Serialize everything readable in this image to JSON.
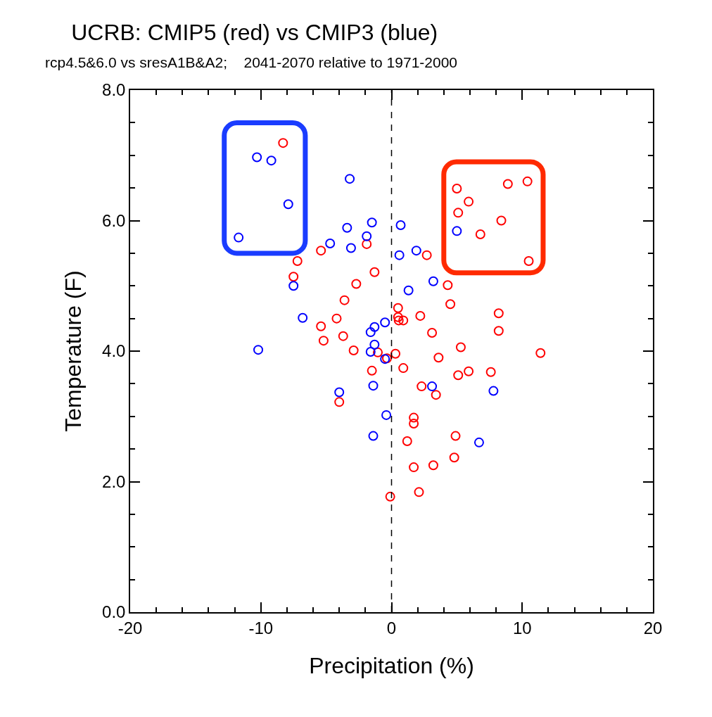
{
  "chart_data": {
    "type": "scatter",
    "title": "UCRB: CMIP5 (red) vs CMIP3 (blue)",
    "subtitle": "rcp4.5&6.0 vs sresA1B&A2;    2041-2070 relative to 1971-2000",
    "xlabel": "Precipitation (%)",
    "ylabel": "Temperature (F)",
    "xlim": [
      -20,
      20
    ],
    "xticks": [
      -20,
      -10,
      0,
      10,
      20
    ],
    "ylim": [
      0,
      8
    ],
    "yticks": [
      {
        "value": 0,
        "label": "0.0"
      },
      {
        "value": 2,
        "label": "2.0"
      },
      {
        "value": 4,
        "label": "4.0"
      },
      {
        "value": 6,
        "label": "6.0"
      },
      {
        "value": 8,
        "label": "8.0"
      }
    ],
    "grid": false,
    "marker": "circle",
    "ref_lines": [
      {
        "axis": "x",
        "value": 0,
        "color": "#000000",
        "line_style": "dashed"
      }
    ],
    "series": [
      {
        "color": "#ff0000",
        "x": [
          -8.3,
          -7.2,
          -7.5,
          -5.4,
          -1.9,
          -1.3,
          -2.7,
          -3.6,
          -4.2,
          -5.4,
          -3.7,
          -5.2,
          -2.9,
          -1.05,
          -0.35,
          0.3,
          -1.5,
          -4.0,
          -0.1,
          0.5,
          0.5,
          0.55,
          0.9,
          4.5,
          2.2,
          8.2,
          8.2,
          3.1,
          5.3,
          3.6,
          11.4,
          0.9,
          5.1,
          5.9,
          7.6,
          2.3,
          3.4,
          1.7,
          1.7,
          1.2,
          4.9,
          4.8,
          1.7,
          3.2,
          2.1,
          2.7,
          4.3,
          5.0,
          5.9,
          5.1,
          8.9,
          10.4,
          8.4,
          6.8,
          10.5
        ],
        "values": [
          7.19,
          5.38,
          5.14,
          5.54,
          5.64,
          5.21,
          5.03,
          4.78,
          4.5,
          4.38,
          4.23,
          4.16,
          4.01,
          3.98,
          3.89,
          3.96,
          3.7,
          3.22,
          1.77,
          4.66,
          4.52,
          4.47,
          4.47,
          4.72,
          4.54,
          4.58,
          4.31,
          4.28,
          4.06,
          3.9,
          3.97,
          3.74,
          3.63,
          3.69,
          3.68,
          3.46,
          3.33,
          2.98,
          2.89,
          2.62,
          2.7,
          2.37,
          2.22,
          2.25,
          1.84,
          5.47,
          5.01,
          6.49,
          6.29,
          6.12,
          6.56,
          6.6,
          6.0,
          5.79,
          5.38
        ]
      },
      {
        "color": "#0000ff",
        "x": [
          -11.7,
          -10.3,
          -9.2,
          -7.9,
          -3.2,
          -1.5,
          -3.4,
          -1.9,
          -4.7,
          -3.1,
          -7.5,
          -6.8,
          -10.2,
          -0.5,
          -1.3,
          -1.6,
          -1.3,
          -1.6,
          -0.5,
          -1.4,
          -4.0,
          -0.4,
          -1.4,
          0.7,
          0.6,
          1.9,
          1.3,
          3.2,
          5.0,
          3.1,
          7.8,
          6.7
        ],
        "values": [
          5.74,
          6.97,
          6.92,
          6.25,
          6.64,
          5.97,
          5.89,
          5.76,
          5.65,
          5.58,
          5.0,
          4.51,
          4.02,
          4.44,
          4.37,
          4.29,
          4.1,
          3.99,
          3.88,
          3.47,
          3.37,
          3.02,
          2.7,
          5.93,
          5.47,
          5.54,
          4.93,
          5.07,
          5.84,
          3.46,
          3.39,
          2.6
        ]
      }
    ]
  }
}
